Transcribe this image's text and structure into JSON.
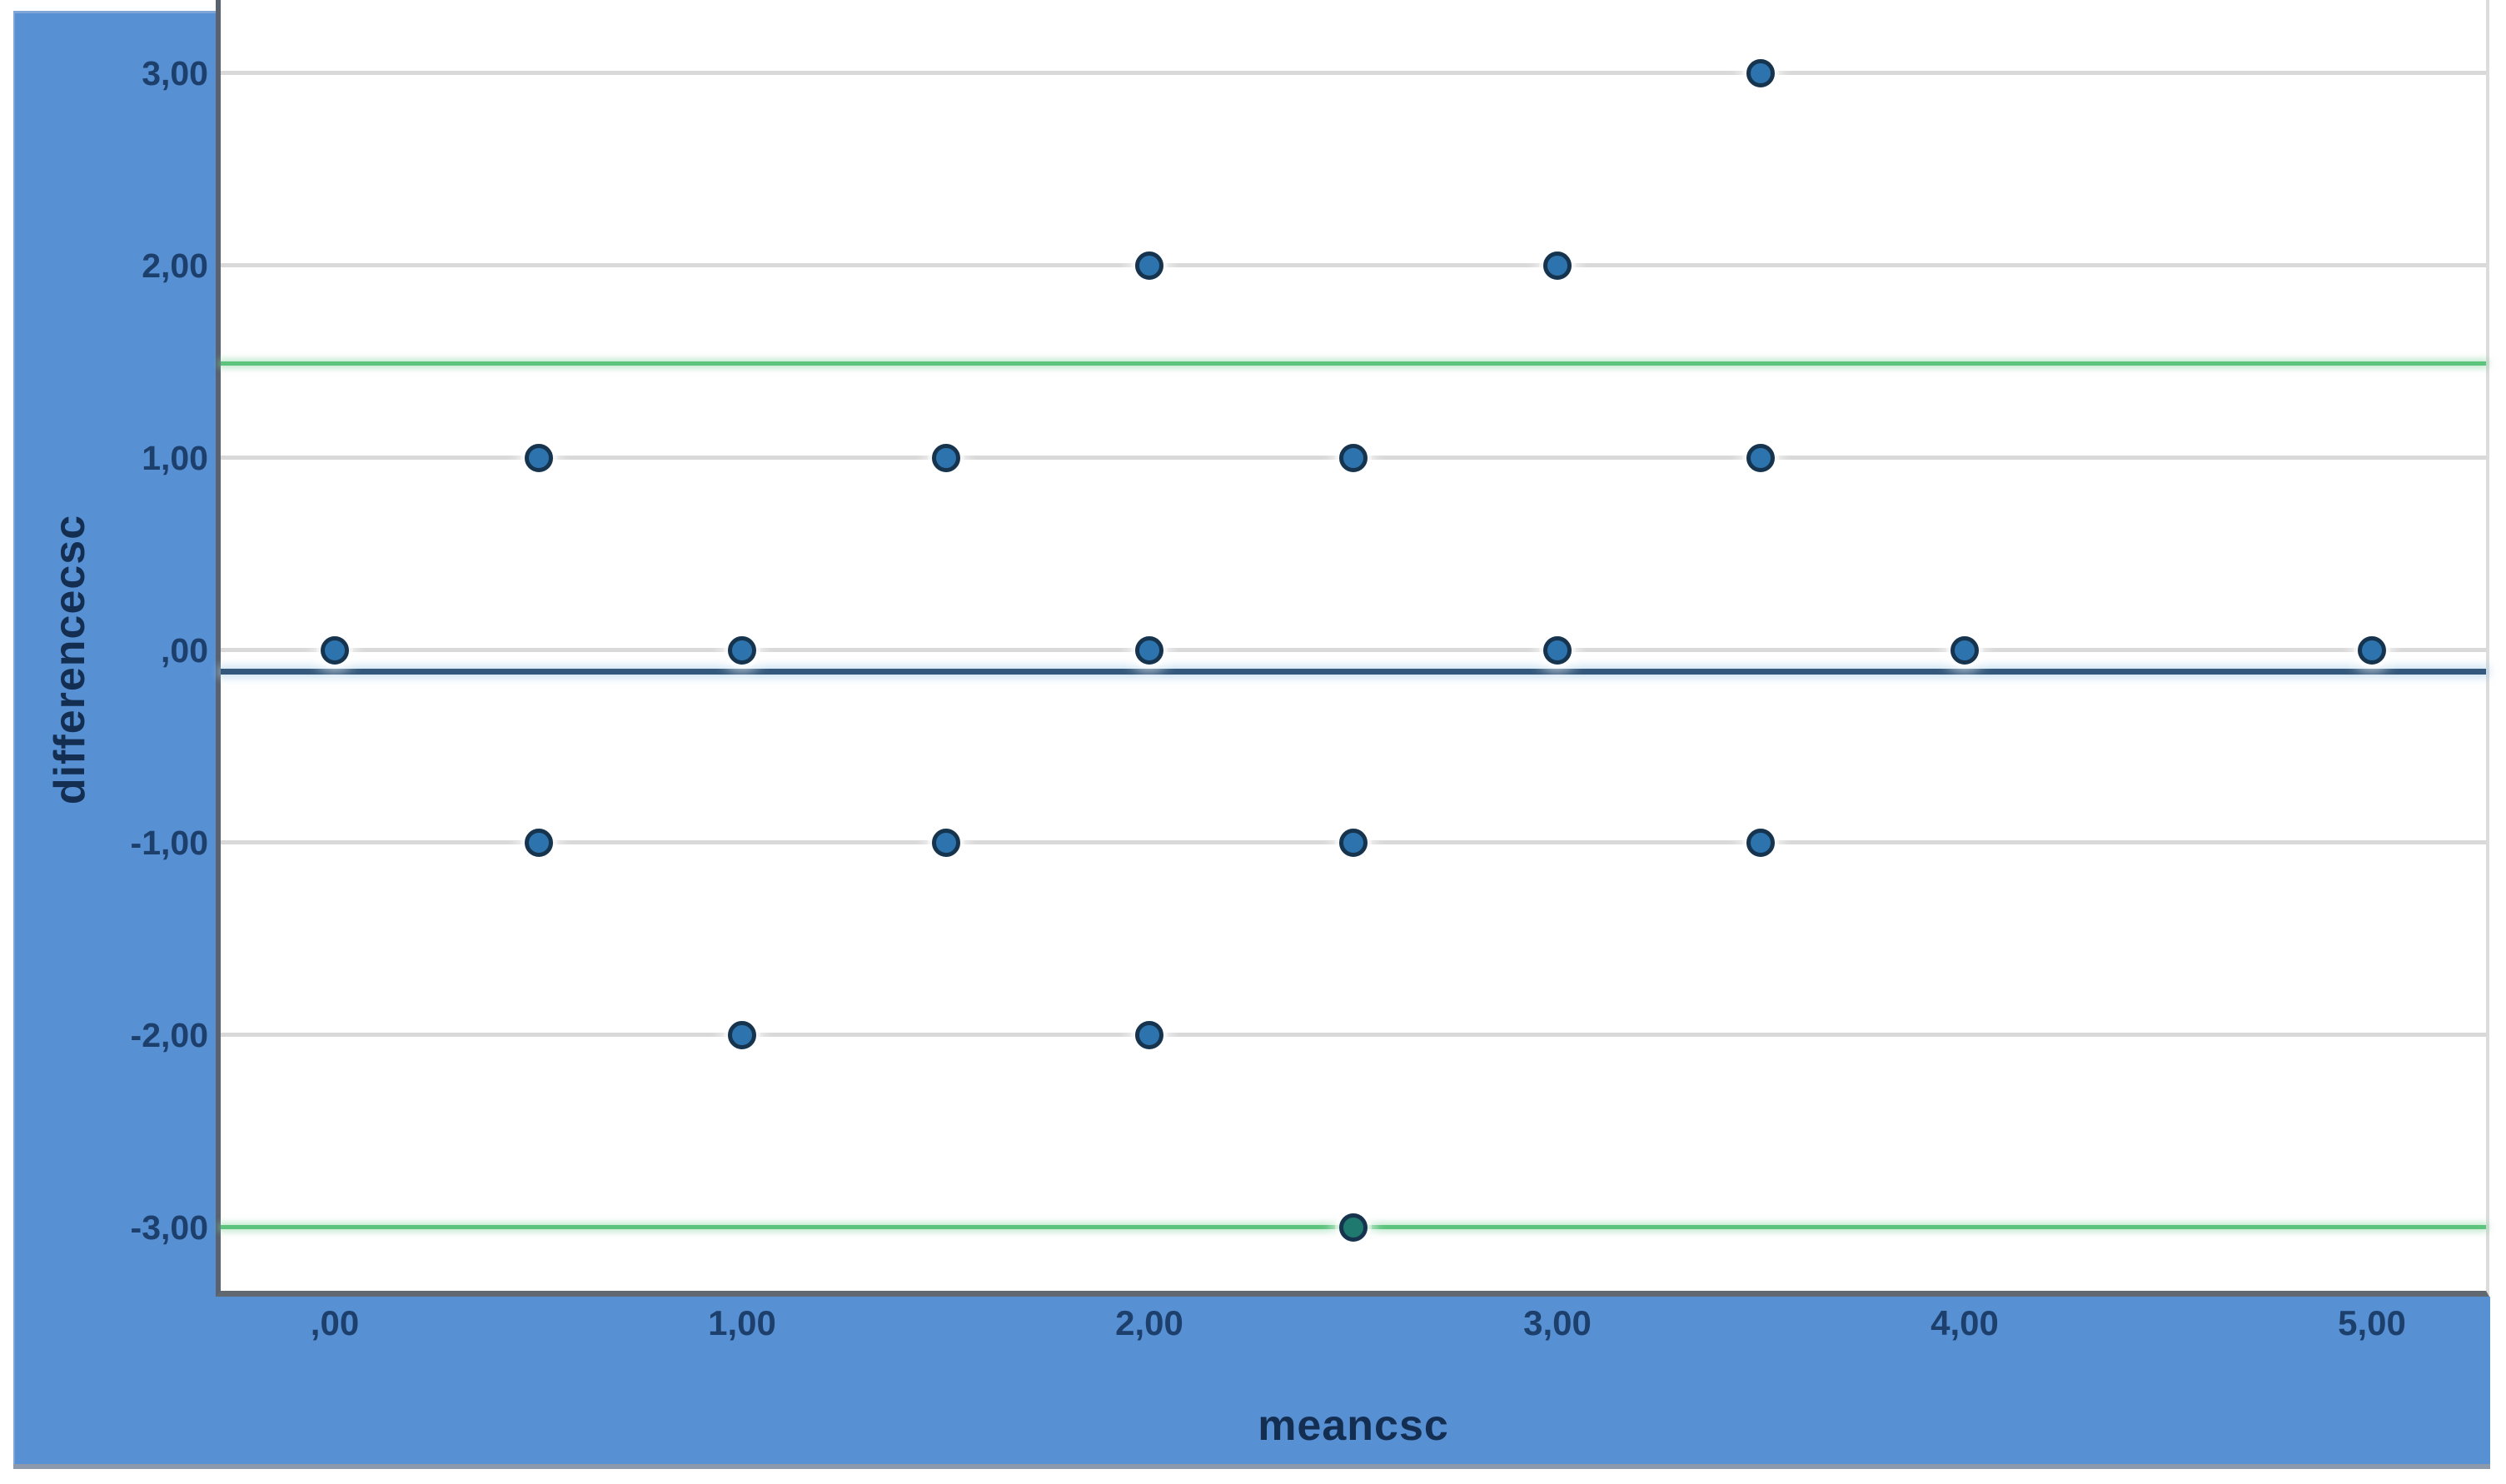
{
  "figure": {
    "x_axis_title": "meancsc",
    "y_axis_title": "differencecsc",
    "colors": {
      "frame_blue": "#5890d4",
      "frame_bottom_edge": "#8c99ad",
      "plot_background": "#ffffff",
      "gridline": "#d9d9d9",
      "axis_line": "#61686f",
      "tick_label": "#1d3f6b",
      "axis_title": "#142e51",
      "marker_fill": "#2d74af",
      "marker_edge": "#17344f",
      "limit_line_green": "#5cc47d",
      "mean_line_navy": "#35597c"
    }
  },
  "chart_data": {
    "type": "scatter",
    "title": "",
    "xlabel": "meancsc",
    "ylabel": "differencecsc",
    "xlim": [
      -0.28,
      5.28
    ],
    "ylim": [
      -3.33,
      3.38
    ],
    "grid": "horizontal-only",
    "legend_position": "none",
    "x_ticks": [
      {
        "value": 0,
        "label": ",00"
      },
      {
        "value": 1,
        "label": "1,00"
      },
      {
        "value": 2,
        "label": "2,00"
      },
      {
        "value": 3,
        "label": "3,00"
      },
      {
        "value": 4,
        "label": "4,00"
      },
      {
        "value": 5,
        "label": "5,00"
      }
    ],
    "y_ticks": [
      {
        "value": 3,
        "label": "3,00"
      },
      {
        "value": 2,
        "label": "2,00"
      },
      {
        "value": 1,
        "label": "1,00"
      },
      {
        "value": 0,
        "label": ",00"
      },
      {
        "value": -1,
        "label": "-1,00"
      },
      {
        "value": -2,
        "label": "-2,00"
      },
      {
        "value": -3,
        "label": "-3,00"
      }
    ],
    "gridlines_y": [
      3,
      2,
      1,
      0,
      -1,
      -2,
      -3
    ],
    "reference_lines": [
      {
        "name": "upper-limit-line",
        "y": 1.49,
        "style": "loa",
        "color": "#5cc47d"
      },
      {
        "name": "mean-line",
        "y": -0.11,
        "style": "mean",
        "color": "#35597c"
      },
      {
        "name": "lower-limit-line",
        "y": -3.0,
        "style": "loa",
        "color": "#5cc47d"
      }
    ],
    "points": [
      {
        "x": 0.0,
        "y": 0
      },
      {
        "x": 0.5,
        "y": 1
      },
      {
        "x": 0.5,
        "y": -1
      },
      {
        "x": 1.0,
        "y": 0
      },
      {
        "x": 1.0,
        "y": -2
      },
      {
        "x": 1.5,
        "y": 1
      },
      {
        "x": 1.5,
        "y": -1
      },
      {
        "x": 2.0,
        "y": 2
      },
      {
        "x": 2.0,
        "y": 0
      },
      {
        "x": 2.0,
        "y": -2
      },
      {
        "x": 2.5,
        "y": 1
      },
      {
        "x": 2.5,
        "y": -1
      },
      {
        "x": 2.5,
        "y": -3,
        "fill": "#20796f"
      },
      {
        "x": 3.0,
        "y": 2
      },
      {
        "x": 3.0,
        "y": 0
      },
      {
        "x": 3.5,
        "y": 3
      },
      {
        "x": 3.5,
        "y": 1
      },
      {
        "x": 3.5,
        "y": -1
      },
      {
        "x": 4.0,
        "y": 0
      },
      {
        "x": 5.0,
        "y": 0
      }
    ]
  }
}
